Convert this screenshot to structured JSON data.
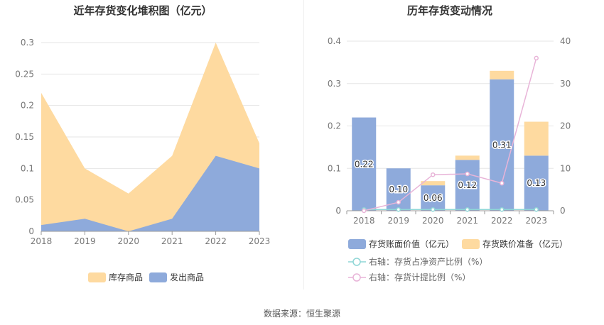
{
  "source_text": "数据来源：恒生聚源",
  "chart_data": [
    {
      "type": "area",
      "stacked": true,
      "title": "近年存货变化堆积图（亿元）",
      "x": [
        "2018",
        "2019",
        "2020",
        "2021",
        "2022",
        "2023"
      ],
      "ylim": [
        0,
        0.3
      ],
      "yticks": [
        "0",
        "0.05",
        "0.1",
        "0.15",
        "0.2",
        "0.25",
        "0.3"
      ],
      "series": [
        {
          "name": "发出商品",
          "values": [
            0.01,
            0.02,
            0.0,
            0.02,
            0.12,
            0.1
          ],
          "color": "#8eaadb"
        },
        {
          "name": "库存商品",
          "values": [
            0.21,
            0.08,
            0.06,
            0.1,
            0.18,
            0.04
          ],
          "color": "#fedaa0"
        }
      ],
      "legend_order": [
        "库存商品",
        "发出商品"
      ],
      "legend_position": "bottom",
      "grid": true
    },
    {
      "type": "bar",
      "stacked": true,
      "title": "历年存货变动情况",
      "categories": [
        "2018",
        "2019",
        "2020",
        "2021",
        "2022",
        "2023"
      ],
      "ylim": [
        0,
        0.4
      ],
      "yticks": [
        "0",
        "0.1",
        "0.2",
        "0.3",
        "0.4"
      ],
      "y2lim": [
        0,
        40
      ],
      "y2ticks": [
        "0",
        "10",
        "20",
        "30",
        "40"
      ],
      "series": [
        {
          "name": "存货账面价值（亿元）",
          "type": "bar",
          "axis": "left",
          "values": [
            0.22,
            0.1,
            0.06,
            0.12,
            0.31,
            0.13
          ],
          "labels": [
            "0.22",
            "0.10",
            "0.06",
            "0.12",
            "0.31",
            "0.13"
          ],
          "color": "#8eaadb"
        },
        {
          "name": "存货跌价准备（亿元）",
          "type": "bar",
          "axis": "left",
          "values": [
            0,
            0,
            0.01,
            0.01,
            0.02,
            0.08
          ],
          "color": "#fedaa0"
        },
        {
          "name": "右轴：存货占净资产比例（%）",
          "type": "line",
          "axis": "right",
          "values": [
            0.3,
            0.3,
            0.3,
            0.3,
            0.3,
            0.3
          ],
          "color": "#8fd6d6"
        },
        {
          "name": "右轴：存货计提比例（%）",
          "type": "line",
          "axis": "right",
          "values": [
            0,
            2,
            8.5,
            8.7,
            6.5,
            36
          ],
          "color": "#e8b4d8"
        }
      ],
      "legend_position": "bottom",
      "grid": true
    }
  ]
}
